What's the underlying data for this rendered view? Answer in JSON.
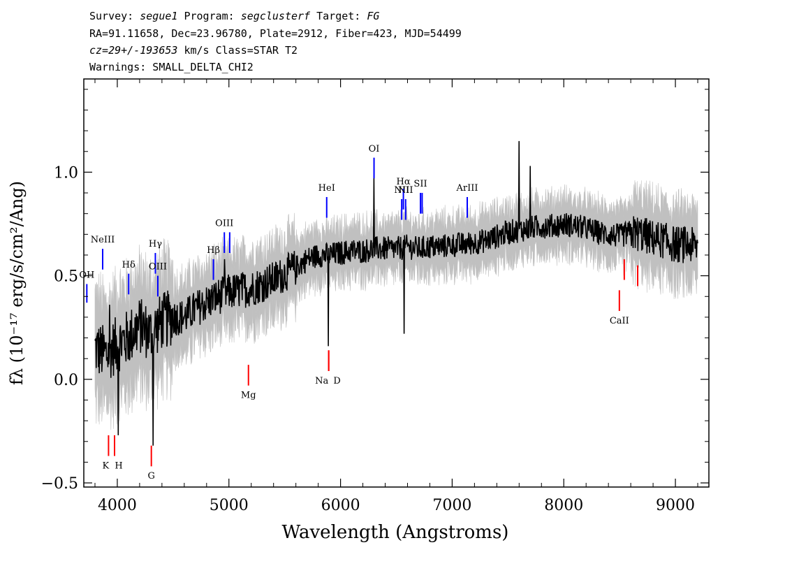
{
  "header": {
    "survey_label": "Survey:",
    "survey": "segue1",
    "program_label": "Program:",
    "program": "segclusterf",
    "target_label": "Target:",
    "target": "FG",
    "line2": "RA=91.11658, Dec=23.96780, Plate=2912, Fiber=423, MJD=54499",
    "line3_cz": "cz=29+/-193653",
    "line3_rest": "km/s Class=STAR T2",
    "line4": "Warnings: SMALL_DELTA_CHI2"
  },
  "chart_data": {
    "type": "line",
    "title": "",
    "xlabel": "Wavelength (Angstroms)",
    "ylabel": "fλ (10⁻¹⁷ erg/s/cm²/Ang)",
    "xlim": [
      3700,
      9300
    ],
    "ylim": [
      -0.52,
      1.45
    ],
    "x_ticks": [
      4000,
      5000,
      6000,
      7000,
      8000,
      9000
    ],
    "y_ticks": [
      -0.5,
      0.0,
      0.5,
      1.0
    ],
    "x_tick_labels": [
      "4000",
      "5000",
      "6000",
      "7000",
      "8000",
      "9000"
    ],
    "y_tick_labels": [
      "−0.5",
      "0.0",
      "0.5",
      "1.0"
    ],
    "colors": {
      "flux": "#000000",
      "error_band": "#c0c0c0",
      "emission": "#0000ff",
      "absorption": "#ff0000"
    },
    "series": [
      {
        "role": "flux",
        "x": [
          3800,
          3900,
          4000,
          4100,
          4200,
          4300,
          4400,
          4500,
          4600,
          4700,
          4800,
          4900,
          5000,
          5100,
          5200,
          5300,
          5400,
          5500,
          5600,
          5700,
          5800,
          5900,
          6000,
          6100,
          6200,
          6300,
          6400,
          6500,
          6600,
          6700,
          6800,
          6900,
          7000,
          7100,
          7200,
          7300,
          7400,
          7500,
          7600,
          7700,
          7800,
          7900,
          8000,
          8100,
          8200,
          8300,
          8400,
          8500,
          8600,
          8700,
          8800,
          8900,
          9000,
          9100,
          9200
        ],
        "y": [
          0.15,
          0.12,
          0.17,
          0.2,
          0.26,
          0.22,
          0.28,
          0.3,
          0.3,
          0.34,
          0.37,
          0.4,
          0.42,
          0.43,
          0.44,
          0.46,
          0.48,
          0.51,
          0.54,
          0.58,
          0.6,
          0.6,
          0.61,
          0.62,
          0.62,
          0.63,
          0.63,
          0.63,
          0.64,
          0.63,
          0.64,
          0.64,
          0.65,
          0.65,
          0.66,
          0.67,
          0.69,
          0.71,
          0.72,
          0.73,
          0.74,
          0.74,
          0.75,
          0.74,
          0.73,
          0.71,
          0.7,
          0.69,
          0.71,
          0.7,
          0.68,
          0.67,
          0.65,
          0.65,
          0.64
        ]
      }
    ],
    "spikes": [
      {
        "x": 3930,
        "y": 0.36
      },
      {
        "x": 4010,
        "y": -0.27
      },
      {
        "x": 4320,
        "y": -0.32
      },
      {
        "x": 4960,
        "y": 0.58
      },
      {
        "x": 5890,
        "y": 0.16
      },
      {
        "x": 6300,
        "y": 0.98
      },
      {
        "x": 6570,
        "y": 0.22
      },
      {
        "x": 7600,
        "y": 1.15
      },
      {
        "x": 7700,
        "y": 1.03
      }
    ],
    "line_annotations": [
      {
        "label": "OH",
        "x": 3727,
        "kind": "emission",
        "y1": 0.37,
        "y2": 0.46,
        "ly": 0.49
      },
      {
        "label": "NeIII",
        "x": 3869,
        "kind": "emission",
        "y1": 0.53,
        "y2": 0.63,
        "ly": 0.66
      },
      {
        "label": "Hδ",
        "x": 4102,
        "kind": "emission",
        "y1": 0.41,
        "y2": 0.51,
        "ly": 0.54
      },
      {
        "label": "Hγ",
        "x": 4341,
        "kind": "emission",
        "y1": 0.51,
        "y2": 0.61,
        "ly": 0.64
      },
      {
        "label": "OIII",
        "x": 4363,
        "kind": "emission",
        "y1": 0.4,
        "y2": 0.5,
        "ly": 0.53
      },
      {
        "label": "Hβ",
        "x": 4861,
        "kind": "emission",
        "y1": 0.48,
        "y2": 0.58,
        "ly": 0.61
      },
      {
        "label": "OIII",
        "x": 4959,
        "kind": "emission",
        "y1": 0.61,
        "y2": 0.71,
        "ly": 0.74
      },
      {
        "label": "",
        "x": 5007,
        "kind": "emission",
        "y1": 0.61,
        "y2": 0.71
      },
      {
        "label": "HeI",
        "x": 5876,
        "kind": "emission",
        "y1": 0.78,
        "y2": 0.88,
        "ly": 0.91
      },
      {
        "label": "OI",
        "x": 6300,
        "kind": "emission",
        "y1": 0.97,
        "y2": 1.07,
        "ly": 1.1
      },
      {
        "label": "NII",
        "x": 6548,
        "kind": "emission",
        "y1": 0.77,
        "y2": 0.87,
        "ly": 0.9
      },
      {
        "label": "Hα",
        "x": 6563,
        "kind": "emission",
        "y1": 0.82,
        "y2": 0.92,
        "ly": 0.94
      },
      {
        "label": "NII",
        "x": 6583,
        "kind": "emission",
        "y1": 0.77,
        "y2": 0.87,
        "ly": 0.9
      },
      {
        "label": "SII",
        "x": 6716,
        "kind": "emission",
        "y1": 0.8,
        "y2": 0.9,
        "ly": 0.93
      },
      {
        "label": "",
        "x": 6731,
        "kind": "emission",
        "y1": 0.8,
        "y2": 0.9
      },
      {
        "label": "ArIII",
        "x": 7135,
        "kind": "emission",
        "y1": 0.78,
        "y2": 0.88,
        "ly": 0.91
      },
      {
        "label": "K",
        "x": 3934,
        "kind": "absorption",
        "y1": -0.37,
        "y2": -0.27,
        "ly": -0.43
      },
      {
        "label": "H",
        "x": 3969,
        "kind": "absorption",
        "y1": -0.37,
        "y2": -0.27,
        "ly": -0.43
      },
      {
        "label": "G",
        "x": 4305,
        "kind": "absorption",
        "y1": -0.42,
        "y2": -0.32,
        "ly": -0.48
      },
      {
        "label": "Mg",
        "x": 5175,
        "kind": "absorption",
        "y1": -0.03,
        "y2": 0.07,
        "ly": -0.09
      },
      {
        "label": "Na",
        "x": 5894,
        "kind": "absorption",
        "y1": 0.04,
        "y2": 0.14,
        "ly": -0.02
      },
      {
        "label": "D",
        "x": 5894,
        "kind": "absorption",
        "y1": 0.04,
        "y2": 0.14,
        "ly": -0.02
      },
      {
        "label": "CaII",
        "x": 8498,
        "kind": "absorption",
        "y1": 0.33,
        "y2": 0.43,
        "ly": 0.27
      },
      {
        "label": "",
        "x": 8542,
        "kind": "absorption",
        "y1": 0.48,
        "y2": 0.58
      },
      {
        "label": "",
        "x": 8662,
        "kind": "absorption",
        "y1": 0.45,
        "y2": 0.55
      }
    ]
  }
}
